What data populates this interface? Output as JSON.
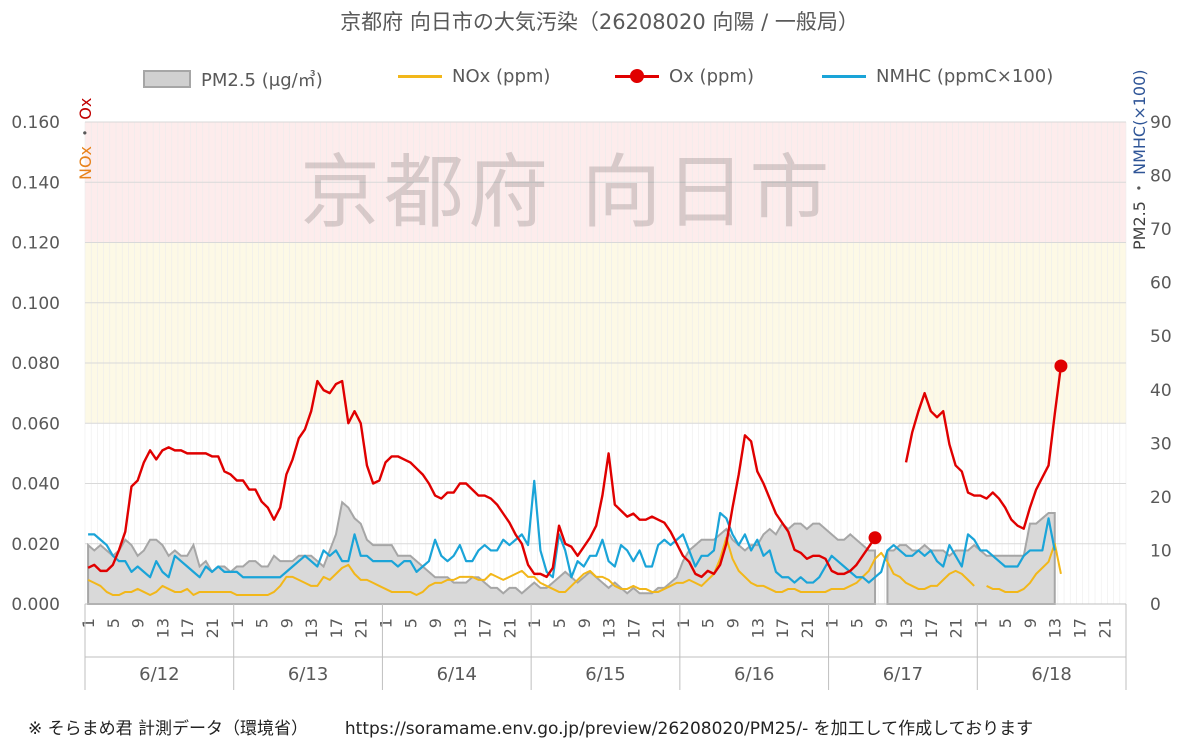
{
  "title": "京都府 向日市の大気汚染（26208020 向陽 / 一般局）",
  "watermark": "京都府 向日市",
  "footer": {
    "source": "※ そらまめ君 計測データ（環境省）",
    "url": "https://soramame.env.go.jp/preview/26208020/PM25/- を加工して作成しております"
  },
  "legend": [
    {
      "label": "PM2.5 (μg/㎥)",
      "color": "#a6a6a6",
      "kind": "area"
    },
    {
      "label": "NOx (ppm)",
      "color": "#f2b71a",
      "kind": "line"
    },
    {
      "label": "Ox (ppm)",
      "color": "#e00000",
      "kind": "line-marker"
    },
    {
      "label": "NMHC (ppmC×100)",
      "color": "#1aa4d8",
      "kind": "line"
    }
  ],
  "axes": {
    "left_label_nox": "NOx",
    "left_label_sep": "・",
    "left_label_ox": "Ox",
    "right_label_pm": "PM2.5",
    "right_label_sep": "・",
    "right_label_nmhc": "NMHC(×100)",
    "left_ticks": [
      "0.000",
      "0.020",
      "0.040",
      "0.060",
      "0.080",
      "0.100",
      "0.120",
      "0.140",
      "0.160"
    ],
    "right_ticks": [
      "0",
      "10",
      "20",
      "30",
      "40",
      "50",
      "60",
      "70",
      "80",
      "90"
    ],
    "hour_ticks": [
      "1",
      "5",
      "9",
      "13",
      "17",
      "21"
    ],
    "days": [
      "6/12",
      "6/13",
      "6/14",
      "6/15",
      "6/16",
      "6/17",
      "6/18"
    ]
  },
  "colors": {
    "red_band": "#fdecec",
    "yellow_band": "#fdf9e6",
    "left_label_nox": "#e8821a",
    "left_label_ox": "#c00000",
    "right_label_nmhc": "#2f5597",
    "right_label_pm": "#404040"
  },
  "chart_data": {
    "type": "line",
    "x_unit": "hour (1–24 per day)",
    "days": [
      "6/12",
      "6/13",
      "6/14",
      "6/15",
      "6/16",
      "6/17",
      "6/18"
    ],
    "ylim_left": [
      0,
      0.16
    ],
    "ylim_right": [
      0,
      90
    ],
    "bands": [
      {
        "range": [
          0.06,
          0.12
        ],
        "color": "yellow"
      },
      {
        "range": [
          0.12,
          0.16
        ],
        "color": "red"
      }
    ],
    "series": [
      {
        "name": "Ox (ppm)",
        "axis": "left",
        "hours": [
          0.012,
          0.013,
          0.011,
          0.011,
          0.013,
          0.018,
          0.024,
          0.039,
          0.041,
          0.047,
          0.051,
          0.048,
          0.051,
          0.052,
          0.051,
          0.051,
          0.05,
          0.05,
          0.05,
          0.05,
          0.049,
          0.049,
          0.044,
          0.043,
          0.041,
          0.041,
          0.038,
          0.038,
          0.034,
          0.032,
          0.028,
          0.032,
          0.043,
          0.048,
          0.055,
          0.058,
          0.064,
          0.074,
          0.071,
          0.07,
          0.073,
          0.074,
          0.06,
          0.064,
          0.06,
          0.046,
          0.04,
          0.041,
          0.047,
          0.049,
          0.049,
          0.048,
          0.047,
          0.045,
          0.043,
          0.04,
          0.036,
          0.035,
          0.037,
          0.037,
          0.04,
          0.04,
          0.038,
          0.036,
          0.036,
          0.035,
          0.033,
          0.03,
          0.027,
          0.023,
          0.02,
          0.013,
          0.01,
          0.01,
          0.009,
          0.012,
          0.026,
          0.02,
          0.019,
          0.016,
          0.019,
          0.022,
          0.026,
          0.036,
          0.05,
          0.033,
          0.031,
          0.029,
          0.03,
          0.028,
          0.028,
          0.029,
          0.028,
          0.027,
          0.024,
          0.02,
          0.016,
          0.014,
          0.01,
          0.009,
          0.011,
          0.01,
          0.013,
          0.02,
          0.032,
          0.043,
          0.056,
          0.054,
          0.044,
          0.04,
          0.035,
          0.03,
          0.027,
          0.024,
          0.018,
          0.017,
          0.015,
          0.016,
          0.016,
          0.015,
          0.011,
          0.01,
          0.01,
          0.011,
          0.013,
          0.016,
          0.019,
          0.022,
          null,
          null,
          null,
          null,
          0.047,
          0.057,
          0.064,
          0.07,
          0.064,
          0.062,
          0.064,
          0.053,
          0.046,
          0.044,
          0.037,
          0.036,
          0.036,
          0.035,
          0.037,
          0.035,
          0.032,
          0.028,
          0.026,
          0.025,
          0.032,
          0.038,
          0.042,
          0.046,
          0.063,
          0.079,
          null,
          null,
          null,
          null,
          null,
          null,
          null,
          null,
          null,
          null
        ]
      },
      {
        "name": "NOx (ppm)",
        "axis": "left",
        "hours": [
          0.008,
          0.007,
          0.006,
          0.004,
          0.003,
          0.003,
          0.004,
          0.004,
          0.005,
          0.004,
          0.003,
          0.004,
          0.006,
          0.005,
          0.004,
          0.004,
          0.005,
          0.003,
          0.004,
          0.004,
          0.004,
          0.004,
          0.004,
          0.004,
          0.003,
          0.003,
          0.003,
          0.003,
          0.003,
          0.003,
          0.004,
          0.006,
          0.009,
          0.009,
          0.008,
          0.007,
          0.006,
          0.006,
          0.009,
          0.008,
          0.01,
          0.012,
          0.013,
          0.01,
          0.008,
          0.008,
          0.007,
          0.006,
          0.005,
          0.004,
          0.004,
          0.004,
          0.004,
          0.003,
          0.004,
          0.006,
          0.007,
          0.007,
          0.008,
          0.008,
          0.009,
          0.009,
          0.009,
          0.008,
          0.008,
          0.01,
          0.009,
          0.008,
          0.009,
          0.01,
          0.011,
          0.009,
          0.009,
          0.007,
          0.006,
          0.005,
          0.004,
          0.004,
          0.006,
          0.008,
          0.01,
          0.011,
          0.009,
          0.009,
          0.008,
          0.006,
          0.005,
          0.005,
          0.006,
          0.005,
          0.005,
          0.004,
          0.004,
          0.005,
          0.006,
          0.007,
          0.007,
          0.008,
          0.007,
          0.006,
          0.008,
          0.01,
          0.015,
          0.022,
          0.015,
          0.011,
          0.009,
          0.007,
          0.006,
          0.006,
          0.005,
          0.004,
          0.004,
          0.005,
          0.005,
          0.004,
          0.004,
          0.004,
          0.004,
          0.004,
          0.005,
          0.005,
          0.005,
          0.006,
          0.007,
          0.009,
          0.011,
          0.015,
          0.017,
          0.014,
          0.01,
          0.009,
          0.007,
          0.006,
          0.005,
          0.005,
          0.006,
          0.006,
          0.008,
          0.01,
          0.011,
          0.01,
          0.008,
          0.006,
          null,
          0.006,
          0.005,
          0.005,
          0.004,
          0.004,
          0.004,
          0.005,
          0.007,
          0.01,
          0.012,
          0.014,
          0.02,
          0.01,
          null,
          null,
          null,
          null,
          null,
          null,
          null,
          null,
          null,
          null
        ]
      },
      {
        "name": "NMHC (ppmC×100)",
        "axis": "right",
        "hours": [
          13,
          13,
          12,
          11,
          9,
          8,
          8,
          6,
          7,
          6,
          5,
          8,
          6,
          5,
          9,
          8,
          7,
          6,
          5,
          7,
          6,
          7,
          6,
          6,
          6,
          5,
          5,
          5,
          5,
          5,
          5,
          5,
          6,
          7,
          8,
          9,
          8,
          7,
          10,
          9,
          10,
          8,
          8,
          13,
          9,
          9,
          8,
          8,
          8,
          8,
          7,
          8,
          8,
          6,
          7,
          8,
          12,
          9,
          8,
          9,
          11,
          8,
          8,
          10,
          11,
          10,
          10,
          12,
          11,
          12,
          13,
          11,
          23,
          10,
          6,
          5,
          13,
          10,
          5,
          8,
          7,
          9,
          9,
          12,
          8,
          7,
          11,
          10,
          8,
          10,
          7,
          7,
          11,
          12,
          11,
          12,
          13,
          10,
          7,
          9,
          9,
          10,
          17,
          16,
          13,
          11,
          13,
          10,
          12,
          9,
          10,
          6,
          5,
          5,
          4,
          5,
          4,
          4,
          5,
          7,
          9,
          8,
          7,
          6,
          5,
          5,
          4,
          5,
          6,
          10,
          11,
          10,
          9,
          9,
          10,
          9,
          10,
          8,
          7,
          11,
          9,
          7,
          13,
          12,
          10,
          10,
          9,
          8,
          7,
          7,
          7,
          9,
          10,
          10,
          10,
          16,
          10,
          null,
          null,
          null,
          null,
          null,
          null,
          null,
          null,
          null,
          null,
          null
        ]
      },
      {
        "name": "PM2.5 (μg/㎥)",
        "axis": "right",
        "hours": [
          11,
          10,
          11,
          10,
          9,
          10,
          12,
          11,
          9,
          10,
          12,
          12,
          11,
          9,
          10,
          9,
          9,
          11,
          7,
          8,
          6,
          7,
          7,
          6,
          7,
          7,
          8,
          8,
          7,
          7,
          9,
          8,
          8,
          8,
          9,
          9,
          9,
          8,
          7,
          10,
          13,
          19,
          18,
          16,
          15,
          12,
          11,
          11,
          11,
          11,
          9,
          9,
          9,
          8,
          7,
          6,
          5,
          5,
          5,
          4,
          4,
          4,
          5,
          5,
          4,
          3,
          3,
          2,
          3,
          3,
          2,
          3,
          4,
          3,
          3,
          4,
          5,
          6,
          5,
          4,
          5,
          6,
          5,
          4,
          3,
          4,
          3,
          2,
          3,
          2,
          2,
          2,
          3,
          3,
          4,
          5,
          8,
          10,
          11,
          12,
          12,
          12,
          13,
          14,
          12,
          11,
          10,
          11,
          11,
          13,
          14,
          13,
          15,
          14,
          15,
          15,
          14,
          15,
          15,
          14,
          13,
          12,
          12,
          13,
          12,
          11,
          10,
          10,
          null,
          10,
          10,
          11,
          11,
          10,
          10,
          11,
          10,
          10,
          10,
          9,
          10,
          10,
          10,
          11,
          10,
          9,
          9,
          9,
          9,
          9,
          9,
          9,
          15,
          15,
          16,
          17,
          17,
          null,
          null,
          null,
          null,
          null,
          null,
          null,
          null,
          null,
          null,
          null
        ]
      }
    ]
  }
}
